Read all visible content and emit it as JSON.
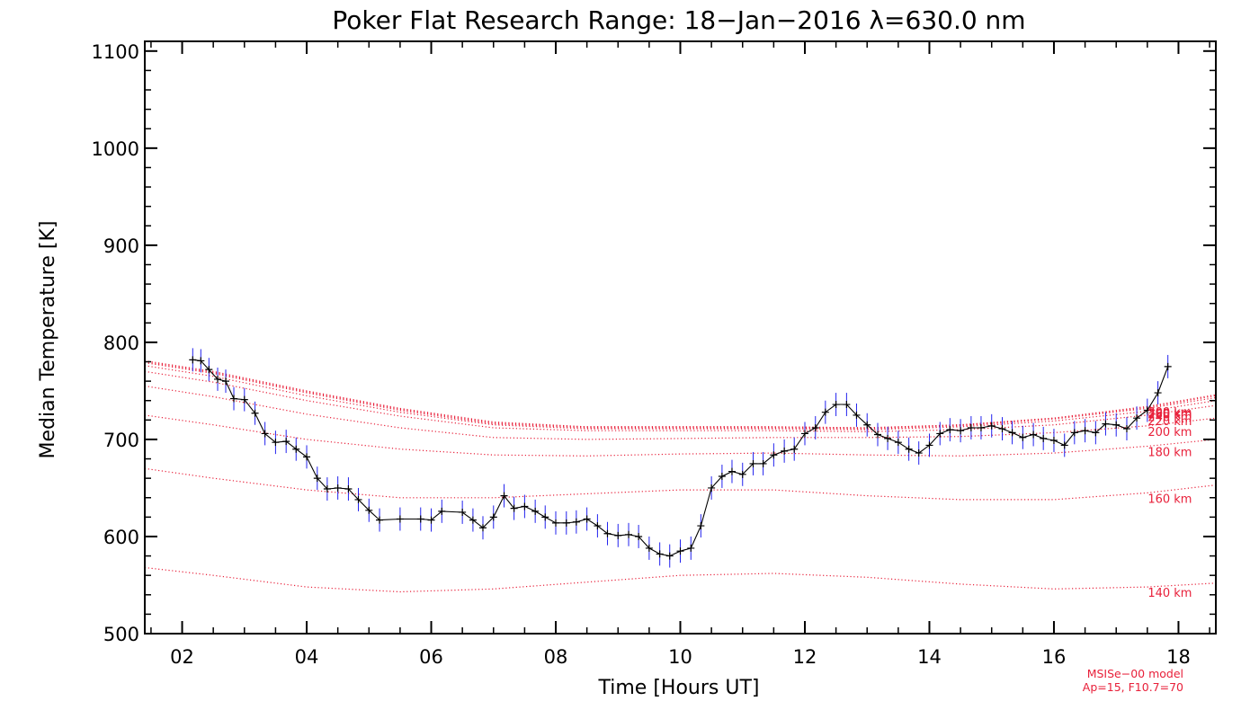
{
  "chart_data": {
    "type": "line",
    "title": "Poker Flat Research Range: 18−Jan−2016 λ=630.0 nm",
    "xlabel": "Time [Hours UT]",
    "ylabel": "Median Temperature [K]",
    "xlim": [
      1.4,
      18.6
    ],
    "ylim": [
      500,
      1110
    ],
    "xticks": [
      2,
      4,
      6,
      8,
      10,
      12,
      14,
      16,
      18
    ],
    "xtick_labels": [
      "02",
      "04",
      "06",
      "08",
      "10",
      "12",
      "14",
      "16",
      "18"
    ],
    "yticks": [
      500,
      600,
      700,
      800,
      900,
      1000,
      1100
    ],
    "ytick_labels": [
      "500",
      "600",
      "700",
      "800",
      "900",
      "1000",
      "1100"
    ],
    "colors": {
      "measured": "#000000",
      "errorbar": "#2222ee",
      "model": "#e8203a"
    },
    "series": [
      {
        "name": "Median Temperature",
        "error": 12,
        "x": [
          2.17,
          2.3,
          2.43,
          2.57,
          2.7,
          2.83,
          3.0,
          3.17,
          3.33,
          3.5,
          3.67,
          3.83,
          4.0,
          4.17,
          4.33,
          4.5,
          4.67,
          4.83,
          5.0,
          5.17,
          5.5,
          5.83,
          6.0,
          6.17,
          6.5,
          6.67,
          6.83,
          7.0,
          7.17,
          7.33,
          7.5,
          7.67,
          7.83,
          8.0,
          8.17,
          8.33,
          8.5,
          8.67,
          8.83,
          9.0,
          9.17,
          9.33,
          9.5,
          9.67,
          9.83,
          10.0,
          10.17,
          10.33,
          10.5,
          10.67,
          10.83,
          11.0,
          11.17,
          11.33,
          11.5,
          11.67,
          11.83,
          12.0,
          12.17,
          12.33,
          12.5,
          12.67,
          12.83,
          13.0,
          13.17,
          13.33,
          13.5,
          13.67,
          13.83,
          14.0,
          14.17,
          14.33,
          14.5,
          14.67,
          14.83,
          15.0,
          15.17,
          15.33,
          15.5,
          15.67,
          15.83,
          16.0,
          16.17,
          16.33,
          16.5,
          16.67,
          16.83,
          17.0,
          17.17,
          17.33,
          17.5,
          17.67,
          17.83
        ],
        "y": [
          782,
          781,
          772,
          762,
          760,
          742,
          741,
          727,
          706,
          697,
          698,
          690,
          682,
          660,
          649,
          650,
          649,
          638,
          627,
          617,
          618,
          618,
          617,
          626,
          625,
          617,
          609,
          620,
          642,
          629,
          631,
          626,
          620,
          614,
          614,
          615,
          618,
          611,
          603,
          601,
          602,
          600,
          588,
          582,
          580,
          585,
          588,
          611,
          650,
          662,
          667,
          664,
          675,
          675,
          684,
          688,
          690,
          706,
          712,
          728,
          736,
          736,
          725,
          715,
          705,
          701,
          697,
          690,
          686,
          694,
          706,
          710,
          709,
          712,
          712,
          714,
          711,
          707,
          702,
          705,
          701,
          699,
          694,
          707,
          709,
          707,
          716,
          715,
          711,
          722,
          730,
          748,
          775
        ]
      }
    ],
    "model_series": [
      {
        "name": "140 km",
        "label": "140 km",
        "x": [
          1.4,
          2.5,
          4.0,
          5.5,
          7.0,
          8.5,
          10.0,
          11.5,
          13.0,
          14.5,
          16.0,
          17.5,
          18.6
        ],
        "y": [
          568,
          560,
          548,
          543,
          546,
          553,
          560,
          562,
          558,
          551,
          546,
          548,
          552
        ]
      },
      {
        "name": "160 km",
        "label": "160 km",
        "x": [
          1.4,
          2.5,
          4.0,
          5.5,
          7.0,
          8.5,
          10.0,
          11.5,
          13.0,
          14.5,
          16.0,
          17.5,
          18.6
        ],
        "y": [
          670,
          660,
          648,
          640,
          640,
          644,
          648,
          648,
          642,
          638,
          638,
          645,
          653
        ]
      },
      {
        "name": "180 km",
        "label": "180 km",
        "x": [
          1.4,
          2.5,
          4.0,
          5.5,
          7.0,
          8.5,
          10.0,
          11.5,
          13.0,
          14.5,
          16.0,
          17.5,
          18.6
        ],
        "y": [
          725,
          715,
          700,
          690,
          684,
          683,
          685,
          686,
          684,
          683,
          686,
          693,
          700
        ]
      },
      {
        "name": "200 km",
        "label": "200 km",
        "x": [
          1.4,
          2.5,
          4.0,
          5.5,
          7.0,
          8.5,
          10.0,
          11.5,
          13.0,
          14.5,
          16.0,
          17.5,
          18.6
        ],
        "y": [
          755,
          744,
          726,
          712,
          702,
          700,
          701,
          702,
          702,
          703,
          707,
          714,
          722
        ]
      },
      {
        "name": "220 km",
        "label": "220 km",
        "x": [
          1.4,
          2.5,
          4.0,
          5.5,
          7.0,
          8.5,
          10.0,
          11.5,
          13.0,
          14.5,
          16.0,
          17.5,
          18.6
        ],
        "y": [
          770,
          759,
          740,
          724,
          712,
          709,
          709,
          709,
          708,
          710,
          715,
          725,
          735
        ]
      },
      {
        "name": "240 km",
        "label": "240 km",
        "x": [
          1.4,
          2.5,
          4.0,
          5.5,
          7.0,
          8.5,
          10.0,
          11.5,
          13.0,
          14.5,
          16.0,
          17.5,
          18.6
        ],
        "y": [
          776,
          765,
          745,
          728,
          715,
          711,
          711,
          711,
          710,
          713,
          719,
          729,
          740
        ]
      },
      {
        "name": "260 km",
        "label": "260 km",
        "x": [
          1.4,
          2.5,
          4.0,
          5.5,
          7.0,
          8.5,
          10.0,
          11.5,
          13.0,
          14.5,
          16.0,
          17.5,
          18.6
        ],
        "y": [
          779,
          768,
          748,
          730,
          716,
          712,
          712,
          712,
          711,
          714,
          721,
          732,
          743
        ]
      },
      {
        "name": "280 km",
        "label": "280 km",
        "x": [
          1.4,
          2.5,
          4.0,
          5.5,
          7.0,
          8.5,
          10.0,
          11.5,
          13.0,
          14.5,
          16.0,
          17.5,
          18.6
        ],
        "y": [
          780,
          769,
          749,
          731,
          717,
          713,
          713,
          713,
          712,
          715,
          722,
          733,
          745
        ]
      },
      {
        "name": "300 km",
        "label": "300 km",
        "x": [
          1.4,
          2.5,
          4.0,
          5.5,
          7.0,
          8.5,
          10.0,
          11.5,
          13.0,
          14.5,
          16.0,
          17.5,
          18.6
        ],
        "y": [
          781,
          770,
          750,
          732,
          718,
          713,
          713,
          713,
          712,
          715,
          722,
          734,
          746
        ]
      }
    ],
    "annotations": [
      "MSISe−00 model",
      "Ap=15, F10.7=70"
    ]
  }
}
